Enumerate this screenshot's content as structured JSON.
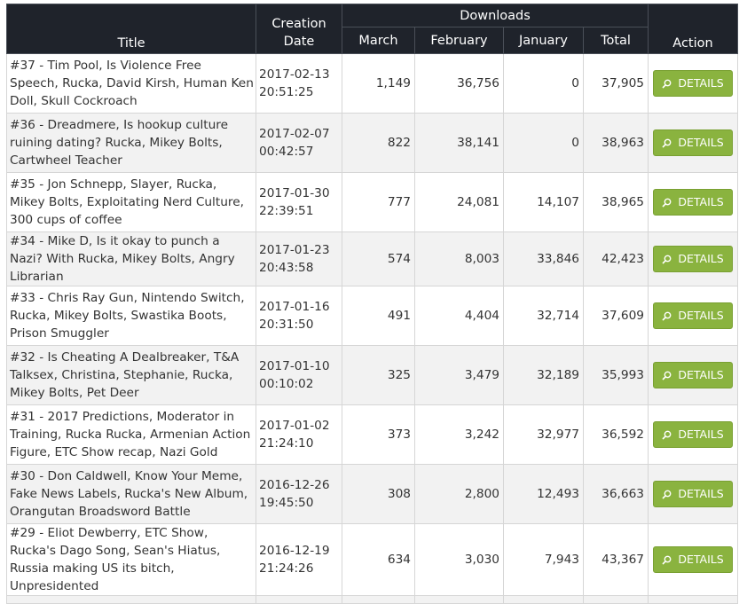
{
  "headers": {
    "title": "Title",
    "creation_date": "Creation Date",
    "downloads": "Downloads",
    "march": "March",
    "february": "February",
    "january": "January",
    "total": "Total",
    "action": "Action"
  },
  "action_label": "DETAILS",
  "colors": {
    "header_bg": "#1f232b",
    "button": "#8ab33f",
    "row_alt": "#f2f2f2"
  },
  "rows": [
    {
      "title": "#37 - Tim Pool, Is Violence Free Speech, Rucka, David Kirsh, Human Ken Doll, Skull Cockroach",
      "date": "2017-02-13 20:51:25",
      "march": "1,149",
      "february": "36,756",
      "january": "0",
      "total": "37,905"
    },
    {
      "title": "#36 - Dreadmere, Is hookup culture ruining dating? Rucka, Mikey Bolts, Cartwheel Teacher",
      "date": "2017-02-07 00:42:57",
      "march": "822",
      "february": "38,141",
      "january": "0",
      "total": "38,963"
    },
    {
      "title": "#35 - Jon Schnepp, Slayer, Rucka, Mikey Bolts, Exploitating Nerd Culture, 300 cups of coffee",
      "date": "2017-01-30 22:39:51",
      "march": "777",
      "february": "24,081",
      "january": "14,107",
      "total": "38,965"
    },
    {
      "title": "#34 - Mike D, Is it okay to punch a Nazi? With Rucka, Mikey Bolts, Angry Librarian",
      "date": "2017-01-23 20:43:58",
      "march": "574",
      "february": "8,003",
      "january": "33,846",
      "total": "42,423"
    },
    {
      "title": "#33 - Chris Ray Gun, Nintendo Switch, Rucka, Mikey Bolts, Swastika Boots, Prison Smuggler",
      "date": "2017-01-16 20:31:50",
      "march": "491",
      "february": "4,404",
      "january": "32,714",
      "total": "37,609"
    },
    {
      "title": "#32 - Is Cheating A Dealbreaker, T&A Talksex, Christina, Stephanie, Rucka, Mikey Bolts, Pet Deer",
      "date": "2017-01-10 00:10:02",
      "march": "325",
      "february": "3,479",
      "january": "32,189",
      "total": "35,993"
    },
    {
      "title": "#31 - 2017 Predictions, Moderator in Training, Rucka Rucka, Armenian Action Figure, ETC Show recap, Nazi Gold",
      "date": "2017-01-02 21:24:10",
      "march": "373",
      "february": "3,242",
      "january": "32,977",
      "total": "36,592"
    },
    {
      "title": "#30 - Don Caldwell, Know Your Meme, Fake News Labels, Rucka's New Album, Orangutan Broadsword Battle",
      "date": "2016-12-26 19:45:50",
      "march": "308",
      "february": "2,800",
      "january": "12,493",
      "total": "36,663"
    },
    {
      "title": "#29 - Eliot Dewberry, ETC Show, Rucka's Dago Song, Sean's Hiatus, Russia making US its bitch, Unpresidented",
      "date": "2016-12-19 21:24:26",
      "march": "634",
      "february": "3,030",
      "january": "7,943",
      "total": "43,367"
    }
  ]
}
